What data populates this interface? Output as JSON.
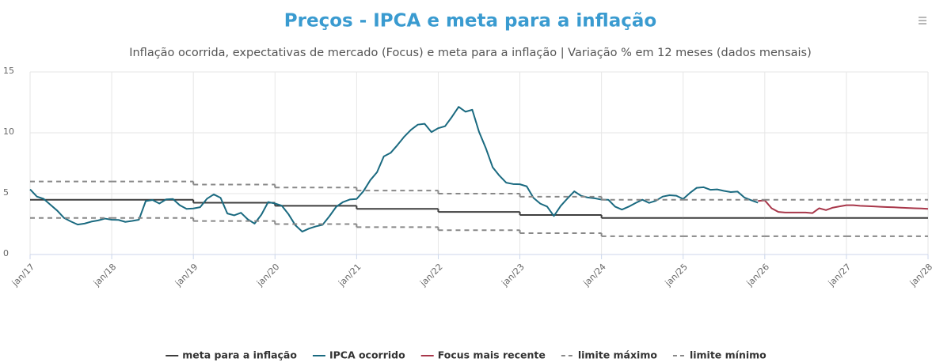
{
  "chart_data": {
    "type": "line",
    "title": "Preços - IPCA e meta para a inflação",
    "subtitle": "Inflação ocorrida, expectativas de mercado (Focus) e meta para a inflação | Variação % em 12 meses (dados mensais)",
    "xlim": [
      "2017-01",
      "2028-01"
    ],
    "xticks": [
      {
        "value": "2017-01",
        "label": "jan/17"
      },
      {
        "value": "2018-01",
        "label": "jan/18"
      },
      {
        "value": "2019-01",
        "label": "jan/19"
      },
      {
        "value": "2020-01",
        "label": "jan/20"
      },
      {
        "value": "2021-01",
        "label": "jan/21"
      },
      {
        "value": "2022-01",
        "label": "jan/22"
      },
      {
        "value": "2023-01",
        "label": "jan/23"
      },
      {
        "value": "2024-01",
        "label": "jan/24"
      },
      {
        "value": "2025-01",
        "label": "jan/25"
      },
      {
        "value": "2026-01",
        "label": "jan/26"
      },
      {
        "value": "2027-01",
        "label": "jan/27"
      },
      {
        "value": "2028-01",
        "label": "jan/28"
      }
    ],
    "ylim": [
      0,
      15
    ],
    "yticks": [
      0,
      5,
      10,
      15
    ],
    "grid": true,
    "legend": "bottom",
    "series": [
      {
        "name": "meta para a inflação",
        "color": "#3d3d3d",
        "step": true,
        "dash": false,
        "x": [
          "2017-01",
          "2018-01",
          "2019-01",
          "2020-01",
          "2021-01",
          "2022-01",
          "2023-01",
          "2024-01",
          "2025-01",
          "2026-01",
          "2027-01"
        ],
        "values": [
          4.5,
          4.5,
          4.25,
          4.0,
          3.75,
          3.5,
          3.25,
          3.0,
          3.0,
          3.0,
          3.0
        ]
      },
      {
        "name": "IPCA ocorrido",
        "color": "#1a6a80",
        "step": false,
        "dash": false,
        "x": [
          "2017-01",
          "2017-02",
          "2017-03",
          "2017-04",
          "2017-05",
          "2017-06",
          "2017-07",
          "2017-08",
          "2017-09",
          "2017-10",
          "2017-11",
          "2017-12",
          "2018-01",
          "2018-02",
          "2018-03",
          "2018-04",
          "2018-05",
          "2018-06",
          "2018-07",
          "2018-08",
          "2018-09",
          "2018-10",
          "2018-11",
          "2018-12",
          "2019-01",
          "2019-02",
          "2019-03",
          "2019-04",
          "2019-05",
          "2019-06",
          "2019-07",
          "2019-08",
          "2019-09",
          "2019-10",
          "2019-11",
          "2019-12",
          "2020-01",
          "2020-02",
          "2020-03",
          "2020-04",
          "2020-05",
          "2020-06",
          "2020-07",
          "2020-08",
          "2020-09",
          "2020-10",
          "2020-11",
          "2020-12",
          "2021-01",
          "2021-02",
          "2021-03",
          "2021-04",
          "2021-05",
          "2021-06",
          "2021-07",
          "2021-08",
          "2021-09",
          "2021-10",
          "2021-11",
          "2021-12",
          "2022-01",
          "2022-02",
          "2022-03",
          "2022-04",
          "2022-05",
          "2022-06",
          "2022-07",
          "2022-08",
          "2022-09",
          "2022-10",
          "2022-11",
          "2022-12",
          "2023-01",
          "2023-02",
          "2023-03",
          "2023-04",
          "2023-05",
          "2023-06",
          "2023-07",
          "2023-08",
          "2023-09",
          "2023-10",
          "2023-11",
          "2023-12",
          "2024-01",
          "2024-02",
          "2024-03",
          "2024-04",
          "2024-05",
          "2024-06",
          "2024-07",
          "2024-08",
          "2024-09",
          "2024-10",
          "2024-11",
          "2024-12",
          "2025-01",
          "2025-02",
          "2025-03",
          "2025-04",
          "2025-05",
          "2025-06",
          "2025-07",
          "2025-08",
          "2025-09",
          "2025-10",
          "2025-11",
          "2025-12"
        ],
        "values": [
          5.35,
          4.76,
          4.57,
          4.08,
          3.6,
          3.0,
          2.71,
          2.46,
          2.54,
          2.7,
          2.8,
          2.95,
          2.86,
          2.84,
          2.68,
          2.76,
          2.86,
          4.39,
          4.48,
          4.19,
          4.53,
          4.56,
          4.05,
          3.75,
          3.78,
          3.89,
          4.58,
          4.94,
          4.66,
          3.37,
          3.22,
          3.43,
          2.89,
          2.54,
          3.27,
          4.31,
          4.19,
          4.01,
          3.3,
          2.4,
          1.88,
          2.13,
          2.31,
          2.44,
          3.14,
          3.92,
          4.31,
          4.52,
          4.56,
          5.2,
          6.1,
          6.76,
          8.06,
          8.35,
          8.99,
          9.68,
          10.25,
          10.67,
          10.74,
          10.06,
          10.38,
          10.54,
          11.3,
          12.13,
          11.73,
          11.89,
          10.07,
          8.73,
          7.17,
          6.47,
          5.9,
          5.79,
          5.77,
          5.6,
          4.65,
          4.18,
          3.94,
          3.16,
          3.99,
          4.61,
          5.19,
          4.82,
          4.68,
          4.62,
          4.51,
          4.5,
          3.93,
          3.69,
          3.93,
          4.23,
          4.5,
          4.24,
          4.42,
          4.76,
          4.87,
          4.83,
          4.56,
          5.06,
          5.48,
          5.53,
          5.32,
          5.35,
          5.23,
          5.13,
          5.17,
          4.68,
          4.46,
          4.26
        ]
      },
      {
        "name": "Focus mais recente",
        "color": "#a8374a",
        "step": false,
        "dash": false,
        "x": [
          "2025-12",
          "2026-01",
          "2026-02",
          "2026-03",
          "2026-04",
          "2026-05",
          "2026-06",
          "2026-07",
          "2026-08",
          "2026-09",
          "2026-10",
          "2026-11",
          "2026-12",
          "2027-01",
          "2027-02",
          "2027-03",
          "2027-04",
          "2027-05",
          "2027-06",
          "2027-07",
          "2027-08",
          "2027-09",
          "2027-10",
          "2027-11",
          "2027-12",
          "2028-01"
        ],
        "values": [
          4.4,
          4.45,
          3.8,
          3.5,
          3.45,
          3.45,
          3.45,
          3.45,
          3.4,
          3.8,
          3.65,
          3.85,
          3.95,
          4.05,
          4.05,
          4.0,
          3.98,
          3.95,
          3.92,
          3.9,
          3.88,
          3.85,
          3.82,
          3.8,
          3.78,
          3.75
        ]
      },
      {
        "name": "limite máximo",
        "color": "#888888",
        "step": true,
        "dash": true,
        "x": [
          "2017-01",
          "2018-01",
          "2019-01",
          "2020-01",
          "2021-01",
          "2022-01",
          "2023-01",
          "2024-01",
          "2025-01",
          "2026-01",
          "2027-01"
        ],
        "values": [
          6.0,
          6.0,
          5.75,
          5.5,
          5.25,
          5.0,
          4.75,
          4.5,
          4.5,
          4.5,
          4.5
        ]
      },
      {
        "name": "limite mínimo",
        "color": "#888888",
        "step": true,
        "dash": true,
        "x": [
          "2017-01",
          "2018-01",
          "2019-01",
          "2020-01",
          "2021-01",
          "2022-01",
          "2023-01",
          "2024-01",
          "2025-01",
          "2026-01",
          "2027-01"
        ],
        "values": [
          3.0,
          3.0,
          2.75,
          2.5,
          2.25,
          2.0,
          1.75,
          1.5,
          1.5,
          1.5,
          1.5
        ]
      }
    ]
  }
}
